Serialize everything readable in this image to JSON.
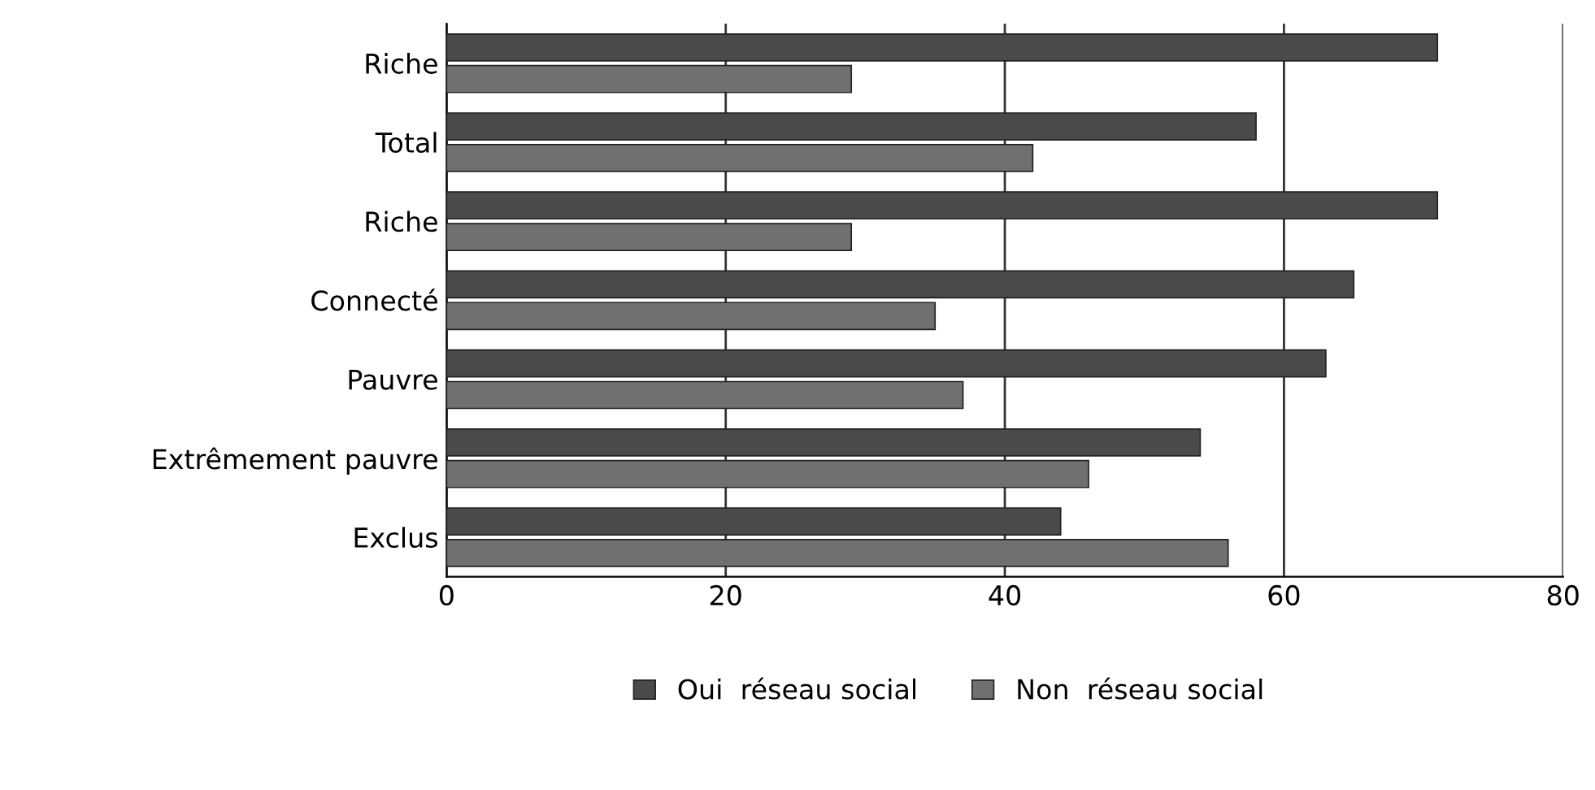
{
  "chart_data": {
    "type": "bar",
    "orientation": "horizontal",
    "categories": [
      "Riche",
      "Total",
      "Riche",
      "Connecté",
      "Pauvre",
      "Extrêmement pauvre",
      "Exclus"
    ],
    "series": [
      {
        "name": "Oui  réseau social",
        "color": "#4a4a4a",
        "values": [
          71,
          58,
          71,
          65,
          63,
          54,
          44
        ]
      },
      {
        "name": "Non  réseau social",
        "color": "#707070",
        "values": [
          29,
          42,
          29,
          35,
          37,
          46,
          56
        ]
      }
    ],
    "xlim": [
      0,
      80
    ],
    "xticks": [
      0,
      20,
      40,
      60,
      80
    ],
    "grid": "x",
    "legend": "bottom"
  }
}
